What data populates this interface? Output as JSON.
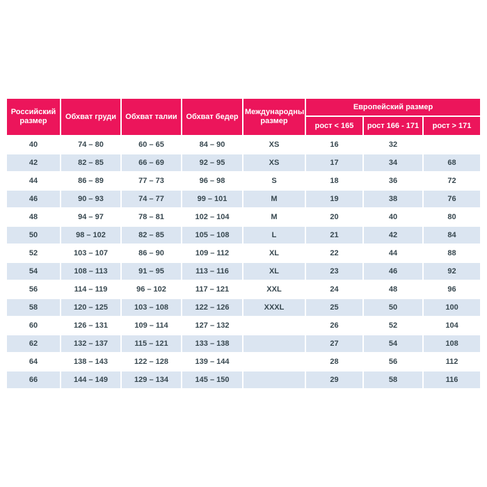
{
  "chart_data": {
    "type": "table",
    "headers": {
      "russian_size": "Российский размер",
      "chest": "Обхват груди",
      "waist": "Обхват талии",
      "hips": "Обхват бедер",
      "international_size": "Международный размер",
      "european_size": "Европейский размер",
      "height_lt_165": "рост < 165",
      "height_166_171": "рост 166 - 171",
      "height_gt_171": "рост > 171"
    },
    "rows": [
      [
        "40",
        "74 – 80",
        "60 – 65",
        "84 – 90",
        "XS",
        "16",
        "32",
        ""
      ],
      [
        "42",
        "82 – 85",
        "66 – 69",
        "92 – 95",
        "XS",
        "17",
        "34",
        "68"
      ],
      [
        "44",
        "86 – 89",
        "77 – 73",
        "96 – 98",
        "S",
        "18",
        "36",
        "72"
      ],
      [
        "46",
        "90 – 93",
        "74 – 77",
        "99 – 101",
        "M",
        "19",
        "38",
        "76"
      ],
      [
        "48",
        "94 – 97",
        "78 – 81",
        "102 – 104",
        "M",
        "20",
        "40",
        "80"
      ],
      [
        "50",
        "98 – 102",
        "82 – 85",
        "105 – 108",
        "L",
        "21",
        "42",
        "84"
      ],
      [
        "52",
        "103 – 107",
        "86 – 90",
        "109 – 112",
        "XL",
        "22",
        "44",
        "88"
      ],
      [
        "54",
        "108 – 113",
        "91 – 95",
        "113 – 116",
        "XL",
        "23",
        "46",
        "92"
      ],
      [
        "56",
        "114 – 119",
        "96 – 102",
        "117 – 121",
        "XXL",
        "24",
        "48",
        "96"
      ],
      [
        "58",
        "120 – 125",
        "103 – 108",
        "122 – 126",
        "XXXL",
        "25",
        "50",
        "100"
      ],
      [
        "60",
        "126 – 131",
        "109 – 114",
        "127 – 132",
        "",
        "26",
        "52",
        "104"
      ],
      [
        "62",
        "132 – 137",
        "115 – 121",
        "133 – 138",
        "",
        "27",
        "54",
        "108"
      ],
      [
        "64",
        "138 – 143",
        "122 – 128",
        "139 – 144",
        "",
        "28",
        "56",
        "112"
      ],
      [
        "66",
        "144 – 149",
        "129 – 134",
        "145 – 150",
        "",
        "29",
        "58",
        "116"
      ]
    ]
  },
  "theme": {
    "header_bg": "#EC155B",
    "header_text": "#FFFFFF",
    "alt_row_bg": "#DBE5F1",
    "row_bg": "#FFFFFF",
    "body_text": "#37474F",
    "page_bg": "#FFFFFF"
  }
}
